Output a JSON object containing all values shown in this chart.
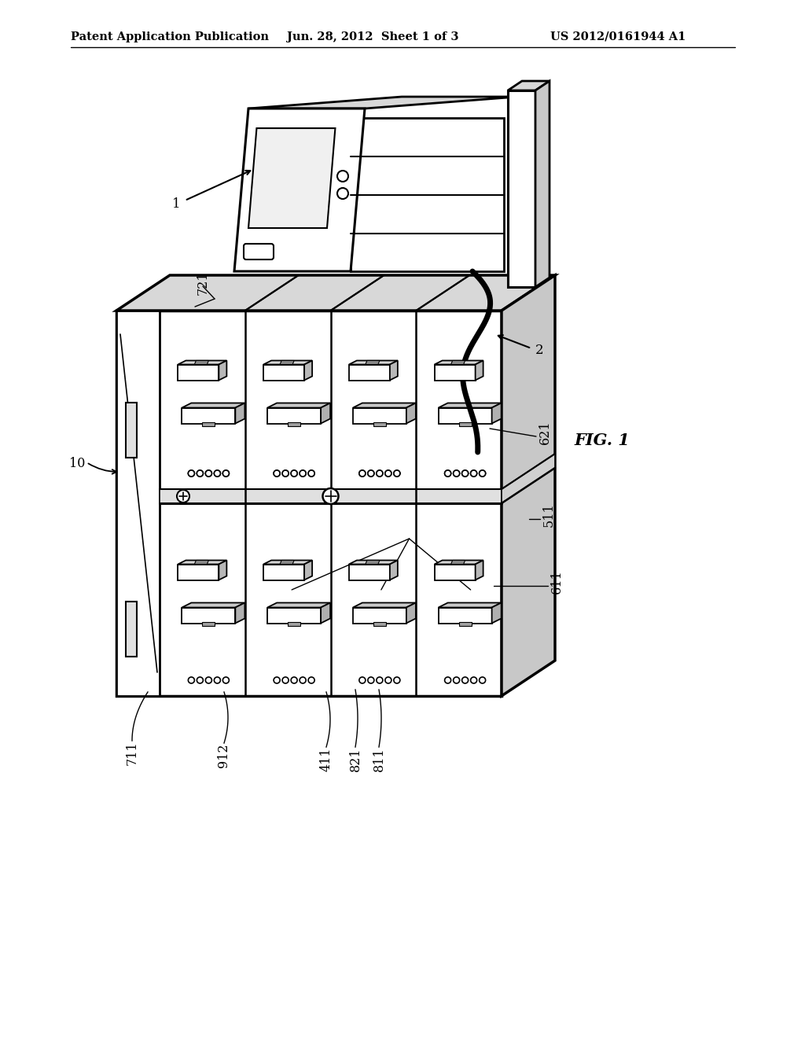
{
  "bg_color": "#ffffff",
  "line_color": "#000000",
  "header_left": "Patent Application Publication",
  "header_mid": "Jun. 28, 2012  Sheet 1 of 3",
  "header_right": "US 2012/0161944 A1",
  "fig_label": "FIG. 1",
  "label_1": "1",
  "label_2": "2",
  "label_10": "10",
  "label_511": "511",
  "label_611": "611",
  "label_621": "621",
  "label_711": "711",
  "label_721": "721",
  "label_811": "811",
  "label_821": "821",
  "label_912": "912",
  "label_411": "411",
  "gray_top": "#d8d8d8",
  "gray_right": "#c8c8c8",
  "gray_light": "#e8e8e8",
  "gray_box_top": "#d0d0d0",
  "gray_box_side": "#b8b8b8",
  "gray_tag_top": "#c8c8c8",
  "gray_tray_top": "#c0c0c0"
}
